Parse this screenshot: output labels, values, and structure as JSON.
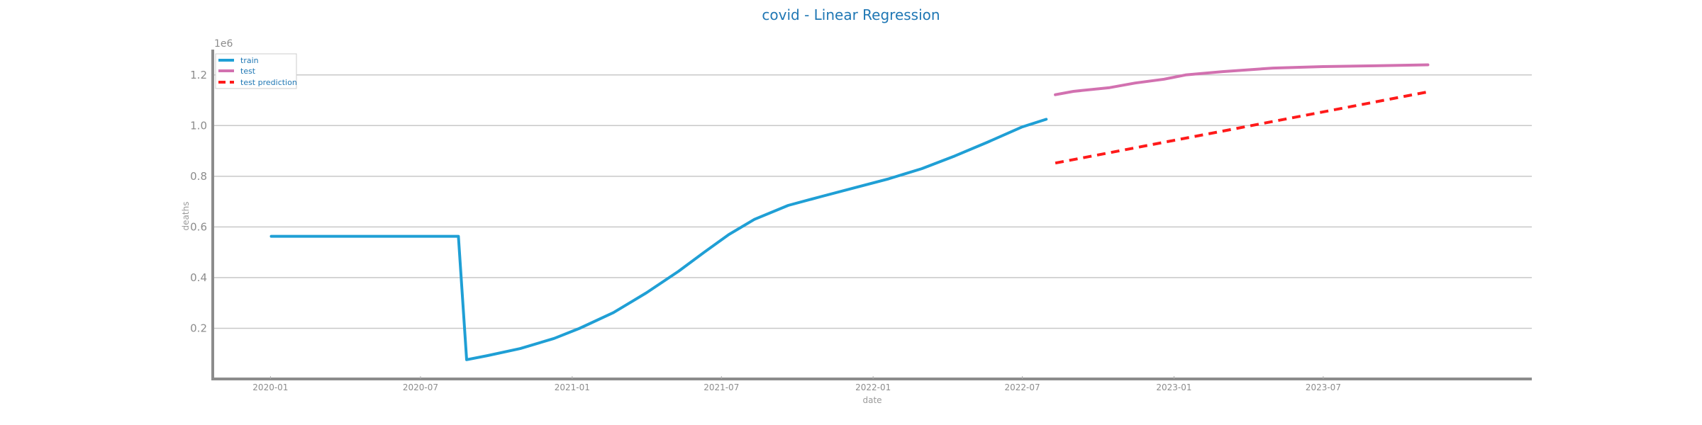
{
  "chart_data": {
    "type": "line",
    "title": "covid - Linear Regression",
    "xlabel": "date",
    "ylabel": "deaths",
    "y_exponent_label": "1e6",
    "ylim": [
      0.0,
      1.3
    ],
    "xlim": [
      "2019-10-23",
      "2024-03-10"
    ],
    "grid": "horizontal",
    "legend_position": "top-left",
    "y_ticks": [
      0.2,
      0.4,
      0.6,
      0.8,
      1.0,
      1.2
    ],
    "y_tick_labels": [
      "0.2",
      "0.4",
      "0.6",
      "0.8",
      "1.0",
      "1.2"
    ],
    "x_ticks": [
      "2020-01-01",
      "2020-07-01",
      "2021-01-01",
      "2021-07-01",
      "2022-01-01",
      "2022-07-01",
      "2023-01-01",
      "2023-07-01"
    ],
    "x_tick_labels": [
      "2020-01",
      "2020-07",
      "2021-01",
      "2021-07",
      "2022-01",
      "2022-07",
      "2023-01",
      "2023-07"
    ],
    "series": [
      {
        "name": "train",
        "color": "#1f9fd5",
        "style": "solid",
        "points": [
          [
            "2020-01-02",
            0.563
          ],
          [
            "2020-08-16",
            0.563
          ],
          [
            "2020-08-26",
            0.076
          ],
          [
            "2020-09-20",
            0.092
          ],
          [
            "2020-10-30",
            0.12
          ],
          [
            "2020-12-10",
            0.16
          ],
          [
            "2021-01-10",
            0.2
          ],
          [
            "2021-02-20",
            0.262
          ],
          [
            "2021-04-01",
            0.34
          ],
          [
            "2021-05-10",
            0.425
          ],
          [
            "2021-06-10",
            0.5
          ],
          [
            "2021-07-10",
            0.57
          ],
          [
            "2021-08-10",
            0.63
          ],
          [
            "2021-09-20",
            0.685
          ],
          [
            "2021-10-30",
            0.72
          ],
          [
            "2021-12-10",
            0.755
          ],
          [
            "2022-01-20",
            0.79
          ],
          [
            "2022-03-01",
            0.83
          ],
          [
            "2022-04-10",
            0.88
          ],
          [
            "2022-05-20",
            0.935
          ],
          [
            "2022-07-01",
            0.995
          ],
          [
            "2022-07-30",
            1.025
          ]
        ]
      },
      {
        "name": "test",
        "color": "#d271b0",
        "style": "solid",
        "points": [
          [
            "2022-08-10",
            1.122
          ],
          [
            "2022-09-01",
            1.135
          ],
          [
            "2022-10-15",
            1.15
          ],
          [
            "2022-11-15",
            1.168
          ],
          [
            "2022-12-20",
            1.183
          ],
          [
            "2023-01-15",
            1.2
          ],
          [
            "2023-03-01",
            1.213
          ],
          [
            "2023-05-01",
            1.227
          ],
          [
            "2023-07-01",
            1.233
          ],
          [
            "2023-09-01",
            1.236
          ],
          [
            "2023-11-05",
            1.24
          ]
        ]
      },
      {
        "name": "test prediction",
        "color": "#ff1a1a",
        "style": "dashed",
        "points": [
          [
            "2022-08-10",
            0.852
          ],
          [
            "2023-11-05",
            1.133
          ]
        ]
      }
    ]
  }
}
